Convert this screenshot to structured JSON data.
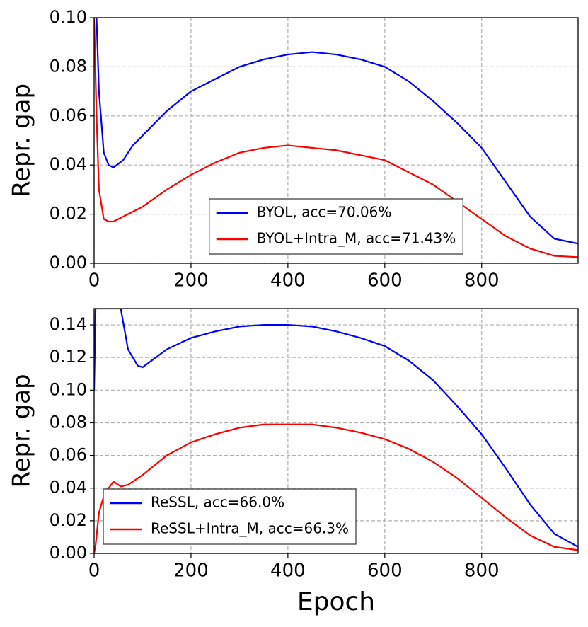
{
  "chart_data": [
    {
      "type": "line",
      "ylabel": "Repr. gap",
      "legend": "lower center",
      "grid": true,
      "x": [
        0,
        5,
        10,
        20,
        30,
        40,
        60,
        80,
        100,
        150,
        200,
        250,
        300,
        350,
        400,
        450,
        500,
        550,
        600,
        650,
        700,
        750,
        800,
        850,
        900,
        950,
        999
      ],
      "series": [
        {
          "name": "BYOL, acc=70.06%",
          "color": "#0000ff",
          "values": [
            0.1,
            0.1,
            0.07,
            0.045,
            0.04,
            0.039,
            0.042,
            0.048,
            0.052,
            0.062,
            0.07,
            0.075,
            0.08,
            0.083,
            0.085,
            0.086,
            0.085,
            0.083,
            0.08,
            0.074,
            0.066,
            0.057,
            0.047,
            0.033,
            0.019,
            0.01,
            0.008
          ]
        },
        {
          "name": "BYOL+Intra_M, acc=71.43%",
          "color": "#ff0000",
          "values": [
            0.1,
            0.06,
            0.03,
            0.018,
            0.017,
            0.017,
            0.019,
            0.021,
            0.023,
            0.03,
            0.036,
            0.041,
            0.045,
            0.047,
            0.048,
            0.047,
            0.046,
            0.044,
            0.042,
            0.037,
            0.032,
            0.025,
            0.018,
            0.011,
            0.006,
            0.003,
            0.0025
          ]
        }
      ],
      "xlim": [
        0,
        999
      ],
      "xticks": [
        0,
        200,
        400,
        600,
        800
      ],
      "ylim": [
        0,
        0.1
      ],
      "yticks": [
        {
          "value": 0,
          "label": "0.00"
        },
        0.02,
        0.04,
        0.06,
        0.08,
        {
          "value": 0.1,
          "label": "0.10"
        }
      ]
    },
    {
      "type": "line",
      "xlabel": "Epoch",
      "ylabel": "Repr. gap",
      "legend": "lower left",
      "grid": true,
      "x": [
        0,
        3,
        10,
        20,
        30,
        40,
        55,
        70,
        90,
        100,
        150,
        200,
        250,
        300,
        350,
        400,
        450,
        500,
        550,
        600,
        650,
        700,
        750,
        800,
        850,
        900,
        950,
        999
      ],
      "series": [
        {
          "name": "ReSSL, acc=66.0%",
          "color": "#0000ff",
          "values": [
            0.1,
            0.15,
            0.15,
            0.15,
            0.15,
            0.15,
            0.15,
            0.125,
            0.115,
            0.114,
            0.125,
            0.132,
            0.136,
            0.139,
            0.14,
            0.14,
            0.139,
            0.136,
            0.132,
            0.127,
            0.118,
            0.106,
            0.09,
            0.073,
            0.052,
            0.03,
            0.012,
            0.004
          ]
        },
        {
          "name": "ReSSL+Intra_M, acc=66.3%",
          "color": "#ff0000",
          "values": [
            0,
            0.005,
            0.025,
            0.035,
            0.04,
            0.044,
            0.041,
            0.042,
            0.046,
            0.048,
            0.06,
            0.068,
            0.073,
            0.077,
            0.079,
            0.079,
            0.079,
            0.077,
            0.074,
            0.07,
            0.064,
            0.056,
            0.046,
            0.034,
            0.022,
            0.011,
            0.004,
            0.002
          ]
        }
      ],
      "xlim": [
        0,
        999
      ],
      "xticks": [
        0,
        200,
        400,
        600,
        800
      ],
      "ylim": [
        0,
        0.15
      ],
      "yticks": [
        {
          "value": 0,
          "label": "0.00"
        },
        0.02,
        0.04,
        0.06,
        0.08,
        {
          "value": 0.1,
          "label": "0.10"
        },
        0.12,
        0.14
      ]
    }
  ]
}
